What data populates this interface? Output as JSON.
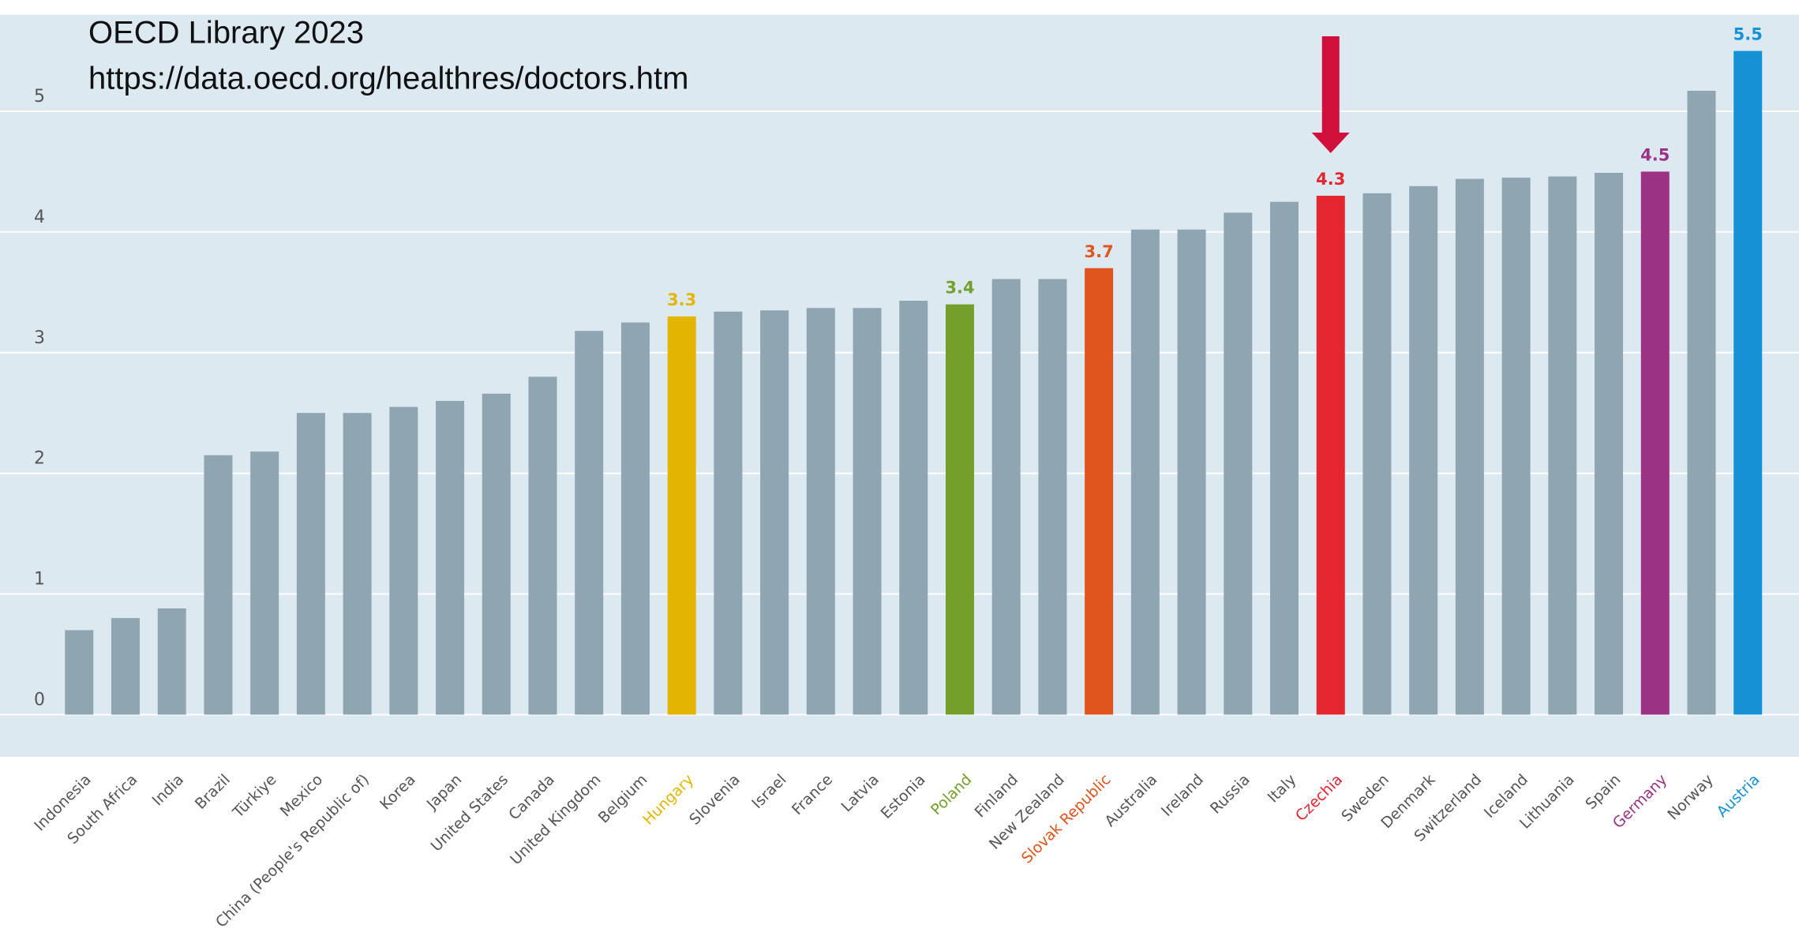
{
  "chart_data": {
    "type": "bar",
    "annotations": [
      "OECD Library 2023",
      "https://data.oecd.org/healthres/doctors.htm"
    ],
    "categories": [
      "Indonesia",
      "South Africa",
      "India",
      "Brazil",
      "Türkiye",
      "Mexico",
      "China (People's Republic of)",
      "Korea",
      "Japan",
      "United States",
      "Canada",
      "United Kingdom",
      "Belgium",
      "Hungary",
      "Slovenia",
      "Israel",
      "France",
      "Latvia",
      "Estonia",
      "Poland",
      "Finland",
      "New Zealand",
      "Slovak Republic",
      "Australia",
      "Ireland",
      "Russia",
      "Italy",
      "Czechia",
      "Sweden",
      "Denmark",
      "Switzerland",
      "Iceland",
      "Lithuania",
      "Spain",
      "Germany",
      "Norway",
      "Austria"
    ],
    "values": [
      0.7,
      0.8,
      0.88,
      2.15,
      2.18,
      2.5,
      2.5,
      2.55,
      2.6,
      2.66,
      2.8,
      3.18,
      3.25,
      3.3,
      3.34,
      3.35,
      3.37,
      3.37,
      3.43,
      3.4,
      3.61,
      3.61,
      3.7,
      4.02,
      4.02,
      4.16,
      4.25,
      4.3,
      4.32,
      4.38,
      4.44,
      4.45,
      4.46,
      4.49,
      4.5,
      5.17,
      5.5
    ],
    "value_labels": [
      null,
      null,
      null,
      null,
      null,
      null,
      null,
      null,
      null,
      null,
      null,
      null,
      null,
      "3.3",
      null,
      null,
      null,
      null,
      null,
      "3.4",
      null,
      null,
      "3.7",
      null,
      null,
      null,
      null,
      "4.3",
      null,
      null,
      null,
      null,
      null,
      null,
      "4.5",
      null,
      "5.5"
    ],
    "colors": [
      "#8fa5b1",
      "#8fa5b1",
      "#8fa5b1",
      "#8fa5b1",
      "#8fa5b1",
      "#8fa5b1",
      "#8fa5b1",
      "#8fa5b1",
      "#8fa5b1",
      "#8fa5b1",
      "#8fa5b1",
      "#8fa5b1",
      "#8fa5b1",
      "#e2b600",
      "#8fa5b1",
      "#8fa5b1",
      "#8fa5b1",
      "#8fa5b1",
      "#8fa5b1",
      "#72a02a",
      "#8fa5b1",
      "#8fa5b1",
      "#e0541d",
      "#8fa5b1",
      "#8fa5b1",
      "#8fa5b1",
      "#8fa5b1",
      "#e3262f",
      "#8fa5b1",
      "#8fa5b1",
      "#8fa5b1",
      "#8fa5b1",
      "#8fa5b1",
      "#8fa5b1",
      "#9b3284",
      "#8fa5b1",
      "#1591d6"
    ],
    "ylim": [
      -0.35,
      5.8
    ],
    "yticks": [
      0,
      1,
      2,
      3,
      4,
      5
    ],
    "grid": true
  }
}
